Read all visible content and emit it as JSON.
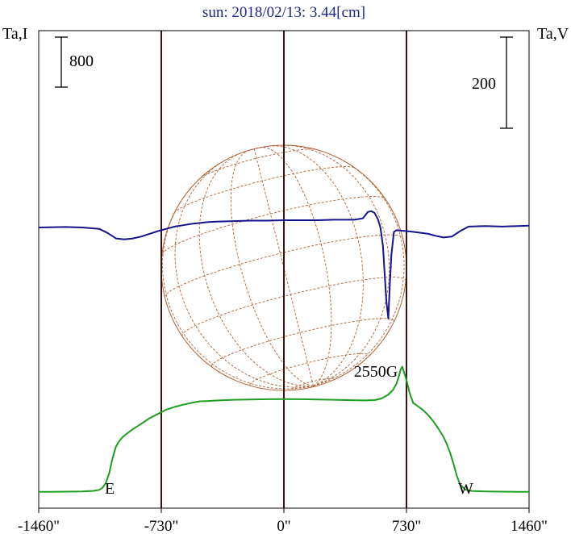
{
  "chart_data": {
    "type": "line",
    "title": "sun: 2018/02/13: 3.44[cm]",
    "left_axis_label": "Ta,I",
    "right_axis_label": "Ta,V",
    "left_scale_label": "800",
    "right_scale_label": "200",
    "xlim": [
      -1460,
      1460
    ],
    "x_ticks": [
      {
        "value": -1460,
        "label": "-1460\""
      },
      {
        "value": -730,
        "label": "-730\""
      },
      {
        "value": 0,
        "label": "0\""
      },
      {
        "value": 730,
        "label": "730\""
      },
      {
        "value": 1460,
        "label": "1460\""
      }
    ],
    "vertical_lines": [
      -730,
      0,
      730
    ],
    "east_label": "E",
    "west_label": "W",
    "annotation": {
      "text": "2550G",
      "x": 550
    },
    "colors": {
      "intensity": "#1e9e1e",
      "polarization": "#14148c",
      "grid": "#b06030",
      "axis": "#3a1010",
      "title": "#1a2a88"
    },
    "series": [
      {
        "key": "intensity",
        "values": [
          [
            -1460,
            3
          ],
          [
            -1400,
            4
          ],
          [
            -1300,
            6
          ],
          [
            -1200,
            10
          ],
          [
            -1130,
            20
          ],
          [
            -1100,
            35
          ],
          [
            -1080,
            70
          ],
          [
            -1060,
            150
          ],
          [
            -1040,
            310
          ],
          [
            -1025,
            500
          ],
          [
            -1010,
            650
          ],
          [
            -1000,
            740
          ],
          [
            -985,
            810
          ],
          [
            -965,
            880
          ],
          [
            -940,
            940
          ],
          [
            -900,
            1020
          ],
          [
            -850,
            1110
          ],
          [
            -800,
            1200
          ],
          [
            -750,
            1270
          ],
          [
            -700,
            1340
          ],
          [
            -650,
            1385
          ],
          [
            -600,
            1420
          ],
          [
            -550,
            1450
          ],
          [
            -500,
            1475
          ],
          [
            -450,
            1480
          ],
          [
            -400,
            1488
          ],
          [
            -300,
            1500
          ],
          [
            -200,
            1505
          ],
          [
            -100,
            1510
          ],
          [
            0,
            1512
          ],
          [
            100,
            1510
          ],
          [
            200,
            1505
          ],
          [
            300,
            1500
          ],
          [
            400,
            1494
          ],
          [
            480,
            1490
          ],
          [
            540,
            1495
          ],
          [
            580,
            1520
          ],
          [
            620,
            1580
          ],
          [
            650,
            1660
          ],
          [
            670,
            1760
          ],
          [
            685,
            1880
          ],
          [
            695,
            1990
          ],
          [
            705,
            2040
          ],
          [
            715,
            1950
          ],
          [
            730,
            1820
          ],
          [
            750,
            1600
          ],
          [
            770,
            1450
          ],
          [
            800,
            1390
          ],
          [
            830,
            1330
          ],
          [
            860,
            1250
          ],
          [
            890,
            1150
          ],
          [
            920,
            1030
          ],
          [
            950,
            900
          ],
          [
            970,
            780
          ],
          [
            990,
            640
          ],
          [
            1010,
            460
          ],
          [
            1030,
            260
          ],
          [
            1050,
            120
          ],
          [
            1080,
            40
          ],
          [
            1120,
            18
          ],
          [
            1200,
            10
          ],
          [
            1300,
            6
          ],
          [
            1400,
            4
          ],
          [
            1460,
            3
          ]
        ]
      },
      {
        "key": "polarization",
        "values": [
          [
            -1460,
            0
          ],
          [
            -1300,
            1
          ],
          [
            -1200,
            0
          ],
          [
            -1100,
            -3
          ],
          [
            -1050,
            -12
          ],
          [
            -1000,
            -24
          ],
          [
            -950,
            -26
          ],
          [
            -900,
            -24
          ],
          [
            -850,
            -20
          ],
          [
            -800,
            -14
          ],
          [
            -750,
            -8
          ],
          [
            -700,
            -3
          ],
          [
            -650,
            2
          ],
          [
            -600,
            5
          ],
          [
            -550,
            8
          ],
          [
            -500,
            10
          ],
          [
            -450,
            12
          ],
          [
            -400,
            13
          ],
          [
            -300,
            14
          ],
          [
            -200,
            15
          ],
          [
            -100,
            15
          ],
          [
            0,
            16
          ],
          [
            100,
            16
          ],
          [
            200,
            16
          ],
          [
            300,
            17
          ],
          [
            420,
            17
          ],
          [
            470,
            20
          ],
          [
            500,
            34
          ],
          [
            520,
            36
          ],
          [
            540,
            32
          ],
          [
            560,
            18
          ],
          [
            575,
            0
          ],
          [
            590,
            -40
          ],
          [
            600,
            -100
          ],
          [
            610,
            -160
          ],
          [
            622,
            -200
          ],
          [
            630,
            -130
          ],
          [
            640,
            -60
          ],
          [
            655,
            -10
          ],
          [
            670,
            -6
          ],
          [
            700,
            -7
          ],
          [
            760,
            -9
          ],
          [
            820,
            -12
          ],
          [
            860,
            -14
          ],
          [
            900,
            -18
          ],
          [
            950,
            -22
          ],
          [
            1000,
            -20
          ],
          [
            1050,
            -8
          ],
          [
            1100,
            2
          ],
          [
            1200,
            3
          ],
          [
            1300,
            2
          ],
          [
            1460,
            4
          ]
        ]
      }
    ]
  }
}
